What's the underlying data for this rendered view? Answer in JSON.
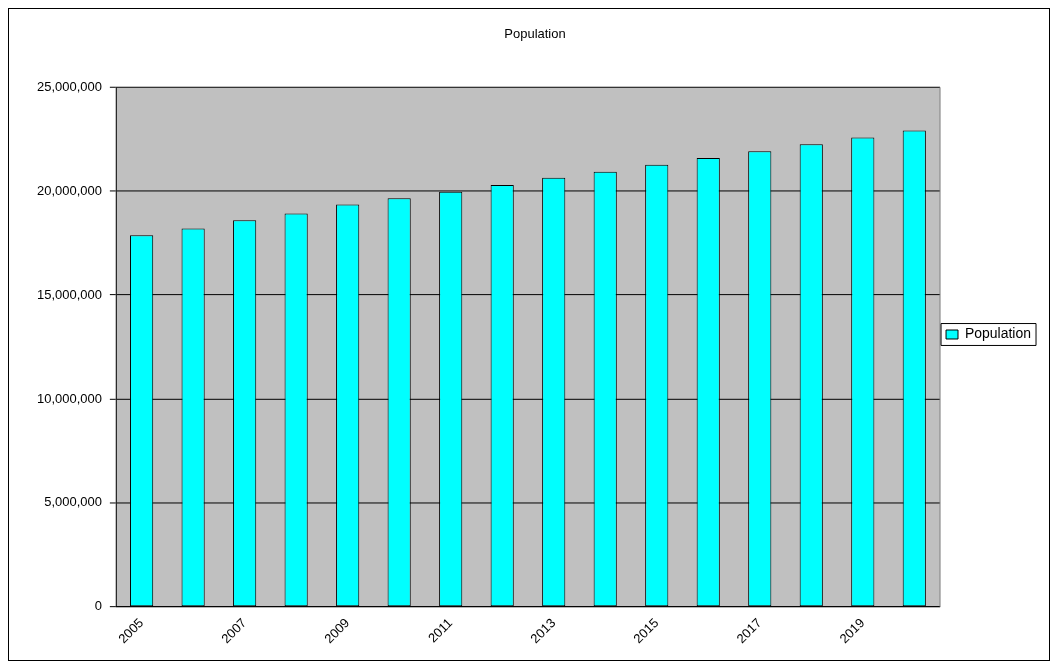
{
  "chart_data": {
    "type": "bar",
    "title": "Population",
    "categories": [
      "2005",
      null,
      "2007",
      null,
      "2009",
      null,
      "2011",
      null,
      "2013",
      null,
      "2015",
      null,
      "2017",
      null,
      "2019",
      null
    ],
    "series": [
      {
        "name": "Population",
        "color": "#00ffff",
        "values": [
          17880000,
          18200000,
          18600000,
          18930000,
          19360000,
          19660000,
          19980000,
          20300000,
          20650000,
          20940000,
          21270000,
          21600000,
          21930000,
          22260000,
          22590000,
          22920000
        ]
      }
    ],
    "ylim": [
      0,
      25000000
    ],
    "yticks": [
      {
        "value": 0,
        "label": "0"
      },
      {
        "value": 5000000,
        "label": "5,000,000"
      },
      {
        "value": 10000000,
        "label": "10,000,000"
      },
      {
        "value": 15000000,
        "label": "15,000,000"
      },
      {
        "value": 20000000,
        "label": "20,000,000"
      },
      {
        "value": 25000000,
        "label": "25,000,000"
      }
    ],
    "grid": "y",
    "legend": "right"
  }
}
